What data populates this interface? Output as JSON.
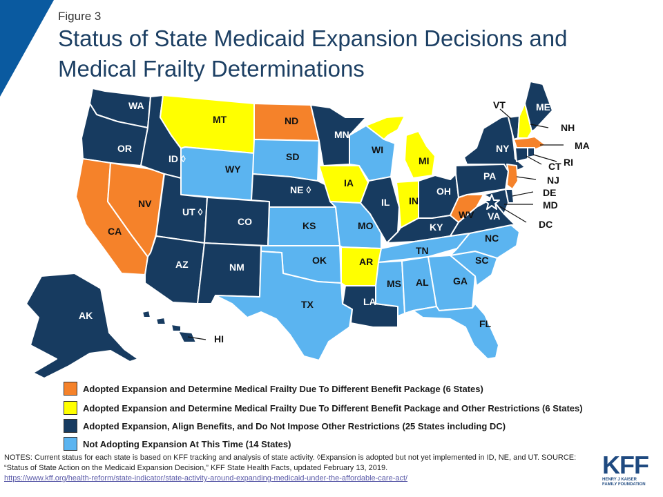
{
  "header": {
    "figure_label": "Figure 3",
    "title": "Status of State Medicaid Expansion Decisions and Medical Frailty Determinations"
  },
  "colors": {
    "expand_frailty_benefit": "#f5822a",
    "expand_frailty_other": "#ffff00",
    "expand_align": "#173b60",
    "not_adopting": "#5bb4f0",
    "accent": "#0a5aa0"
  },
  "legend": [
    {
      "key": "expand_frailty_benefit",
      "label": "Adopted Expansion and Determine Medical Frailty Due To Different Benefit Package (6 States)"
    },
    {
      "key": "expand_frailty_other",
      "label": "Adopted Expansion and Determine Medical Frailty Due To Different Benefit Package and Other Restrictions (6 States)"
    },
    {
      "key": "expand_align",
      "label": "Adopted Expansion, Align Benefits, and Do Not Impose Other Restrictions (25 States including DC)"
    },
    {
      "key": "not_adopting",
      "label": "Not Adopting Expansion At This Time (14 States)"
    }
  ],
  "states": {
    "WA": {
      "label": "WA",
      "status": "expand_align"
    },
    "OR": {
      "label": "OR",
      "status": "expand_align"
    },
    "CA": {
      "label": "CA",
      "status": "expand_frailty_benefit"
    },
    "NV": {
      "label": "NV",
      "status": "expand_frailty_benefit"
    },
    "ID": {
      "label": "ID ◊",
      "status": "expand_align"
    },
    "MT": {
      "label": "MT",
      "status": "expand_frailty_other"
    },
    "WY": {
      "label": "WY",
      "status": "not_adopting"
    },
    "UT": {
      "label": "UT ◊",
      "status": "expand_align"
    },
    "AZ": {
      "label": "AZ",
      "status": "expand_align"
    },
    "CO": {
      "label": "CO",
      "status": "expand_align"
    },
    "NM": {
      "label": "NM",
      "status": "expand_align"
    },
    "ND": {
      "label": "ND",
      "status": "expand_frailty_benefit"
    },
    "SD": {
      "label": "SD",
      "status": "not_adopting"
    },
    "NE": {
      "label": "NE ◊",
      "status": "expand_align"
    },
    "KS": {
      "label": "KS",
      "status": "not_adopting"
    },
    "OK": {
      "label": "OK",
      "status": "not_adopting"
    },
    "TX": {
      "label": "TX",
      "status": "not_adopting"
    },
    "MN": {
      "label": "MN",
      "status": "expand_align"
    },
    "IA": {
      "label": "IA",
      "status": "expand_frailty_other"
    },
    "MO": {
      "label": "MO",
      "status": "not_adopting"
    },
    "AR": {
      "label": "AR",
      "status": "expand_frailty_other"
    },
    "LA": {
      "label": "LA",
      "status": "expand_align"
    },
    "WI": {
      "label": "WI",
      "status": "not_adopting"
    },
    "IL": {
      "label": "IL",
      "status": "expand_align"
    },
    "MI": {
      "label": "MI",
      "status": "expand_frailty_other"
    },
    "IN": {
      "label": "IN",
      "status": "expand_frailty_other"
    },
    "OH": {
      "label": "OH",
      "status": "expand_align"
    },
    "KY": {
      "label": "KY",
      "status": "expand_align"
    },
    "TN": {
      "label": "TN",
      "status": "not_adopting"
    },
    "MS": {
      "label": "MS",
      "status": "not_adopting"
    },
    "AL": {
      "label": "AL",
      "status": "not_adopting"
    },
    "GA": {
      "label": "GA",
      "status": "not_adopting"
    },
    "FL": {
      "label": "FL",
      "status": "not_adopting"
    },
    "SC": {
      "label": "SC",
      "status": "not_adopting"
    },
    "NC": {
      "label": "NC",
      "status": "not_adopting"
    },
    "VA": {
      "label": "VA",
      "status": "expand_align"
    },
    "WV": {
      "label": "WV",
      "status": "expand_frailty_benefit"
    },
    "PA": {
      "label": "PA",
      "status": "expand_align"
    },
    "NY": {
      "label": "NY",
      "status": "expand_align"
    },
    "ME": {
      "label": "ME",
      "status": "expand_align"
    },
    "VT": {
      "label": "VT",
      "status": "expand_align"
    },
    "NH": {
      "label": "NH",
      "status": "expand_frailty_other"
    },
    "MA": {
      "label": "MA",
      "status": "expand_frailty_benefit"
    },
    "RI": {
      "label": "RI",
      "status": "expand_align"
    },
    "CT": {
      "label": "CT",
      "status": "expand_align"
    },
    "NJ": {
      "label": "NJ",
      "status": "expand_frailty_benefit"
    },
    "DE": {
      "label": "DE",
      "status": "expand_align"
    },
    "MD": {
      "label": "MD",
      "status": "expand_align"
    },
    "DC": {
      "label": "DC",
      "status": "expand_align"
    },
    "AK": {
      "label": "AK",
      "status": "expand_align"
    },
    "HI": {
      "label": "HI",
      "status": "expand_align"
    }
  },
  "notes": {
    "line1": "NOTES: Current status for each state is based on KFF tracking and analysis of state activity. ◊Expansion is adopted but not yet implemented in ID, NE, and UT. SOURCE: “Status of State Action on the Medicaid Expansion Decision,” KFF State Health Facts, updated February 13, 2019.",
    "url": "https://www.kff.org/health-reform/state-indicator/state-activity-around-expanding-medicaid-under-the-affordable-care-act/"
  },
  "logo": {
    "text": "KFF",
    "subtitle_line1": "HENRY J KAISER",
    "subtitle_line2": "FAMILY FOUNDATION"
  }
}
